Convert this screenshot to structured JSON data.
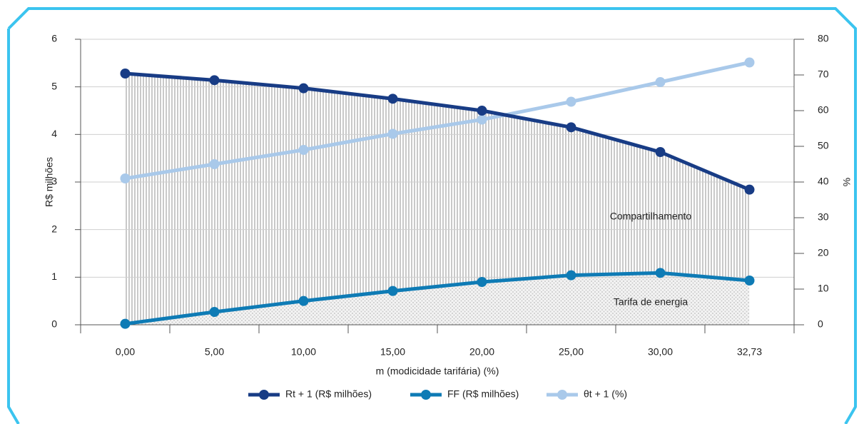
{
  "chart_data": {
    "type": "line",
    "categories": [
      "0,00",
      "5,00",
      "10,00",
      "15,00",
      "20,00",
      "25,00",
      "30,00",
      "32,73"
    ],
    "xlabel": "m (modicidade tarifária) (%)",
    "ylabel": "R$ milhões",
    "y2label": "%",
    "ylim": [
      0,
      6
    ],
    "yticks": [
      0,
      1,
      2,
      3,
      4,
      5,
      6
    ],
    "y2lim": [
      0,
      80
    ],
    "y2ticks": [
      0,
      10,
      20,
      30,
      40,
      50,
      60,
      70,
      80
    ],
    "grid": true,
    "series": [
      {
        "name": "Rt + 1 (R$ milhões)",
        "color": "#183c85",
        "values": [
          5.28,
          5.14,
          4.97,
          4.75,
          4.5,
          4.15,
          3.63,
          2.84
        ]
      },
      {
        "name": "FF (R$ milhões)",
        "color": "#0e7bb5",
        "values": [
          0.02,
          0.27,
          0.5,
          0.71,
          0.9,
          1.04,
          1.09,
          0.93
        ]
      },
      {
        "name": "θt + 1 (%)",
        "color": "#a9c9ea",
        "axis": "y2",
        "values": [
          41,
          45,
          49,
          53.5,
          57.5,
          62.5,
          68,
          73.5
        ]
      }
    ],
    "annotations": [
      "Compartilhamento",
      "Tarifa de energia"
    ]
  }
}
